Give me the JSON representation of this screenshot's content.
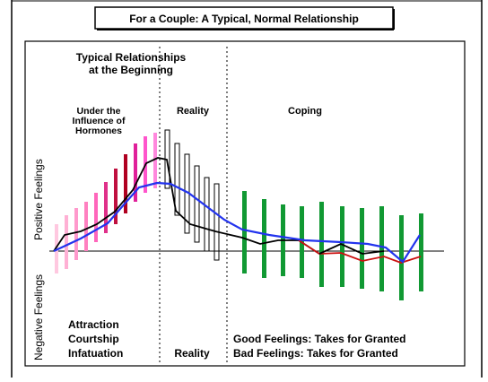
{
  "header": {
    "title": "For a Couple: A Typical, Normal Relationship"
  },
  "labels": {
    "beginning": [
      "Typical Relationships",
      "at the Beginning"
    ],
    "hormones": [
      "Under the",
      "Influence of",
      "Hormones"
    ],
    "reality_top": "Reality",
    "coping": "Coping",
    "positive": "Positive Feelings",
    "negative": "Negative Feelings",
    "stages": [
      "Attraction",
      "Courtship",
      "Infatuation"
    ],
    "reality_bottom": "Reality",
    "good": "Good Feelings: Takes for Granted",
    "bad": "Bad Feelings: Takes for Granted"
  }
}
